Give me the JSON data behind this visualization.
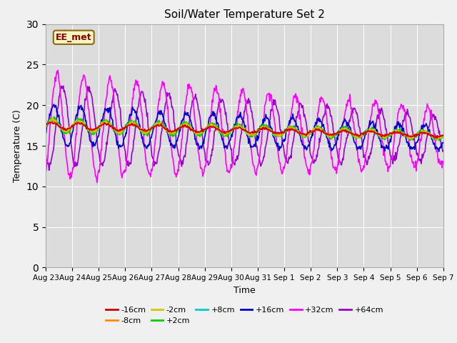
{
  "title": "Soil/Water Temperature Set 2",
  "xlabel": "Time",
  "ylabel": "Temperature (C)",
  "ylim": [
    0,
    30
  ],
  "yticks": [
    0,
    5,
    10,
    15,
    20,
    25,
    30
  ],
  "background_color": "#dcdcdc",
  "watermark": "EE_met",
  "series_order": [
    "+64cm",
    "+32cm",
    "+16cm",
    "+8cm",
    "+2cm",
    "-2cm",
    "-8cm",
    "-16cm"
  ],
  "series": {
    "-16cm": {
      "color": "#cc0000",
      "lw": 1.2
    },
    "-8cm": {
      "color": "#ff8800",
      "lw": 1.2
    },
    "-2cm": {
      "color": "#cccc00",
      "lw": 1.2
    },
    "+2cm": {
      "color": "#00cc00",
      "lw": 1.2
    },
    "+8cm": {
      "color": "#00cccc",
      "lw": 1.2
    },
    "+16cm": {
      "color": "#0000cc",
      "lw": 1.2
    },
    "+32cm": {
      "color": "#ff00ff",
      "lw": 1.2
    },
    "+64cm": {
      "color": "#9900cc",
      "lw": 1.2
    }
  },
  "num_days": 15,
  "base_temp": 17.5,
  "depth_params": {
    "-16cm": {
      "amplitude": 0.4,
      "phase": 0.0,
      "drift": -1.2,
      "noise": 0.08
    },
    "-8cm": {
      "amplitude": 0.5,
      "phase": 0.05,
      "drift": -1.2,
      "noise": 0.08
    },
    "-2cm": {
      "amplitude": 0.7,
      "phase": 0.1,
      "drift": -1.2,
      "noise": 0.1
    },
    "+2cm": {
      "amplitude": 0.9,
      "phase": 0.15,
      "drift": -1.2,
      "noise": 0.12
    },
    "+8cm": {
      "amplitude": 0.7,
      "phase": 0.0,
      "drift": -1.2,
      "noise": 0.1
    },
    "+16cm": {
      "amplitude": 2.5,
      "phase": 0.4,
      "drift": -1.5,
      "noise": 0.2
    },
    "+32cm": {
      "amplitude": 6.5,
      "phase": 1.1,
      "drift": -1.5,
      "noise": 0.3
    },
    "+64cm": {
      "amplitude": 5.0,
      "phase": 2.4,
      "drift": -1.5,
      "noise": 0.25
    }
  },
  "xtick_labels": [
    "Aug 23",
    "Aug 24",
    "Aug 25",
    "Aug 26",
    "Aug 27",
    "Aug 28",
    "Aug 29",
    "Aug 30",
    "Aug 31",
    "Sep 1",
    "Sep 2",
    "Sep 3",
    "Sep 4",
    "Sep 5",
    "Sep 6",
    "Sep 7"
  ]
}
